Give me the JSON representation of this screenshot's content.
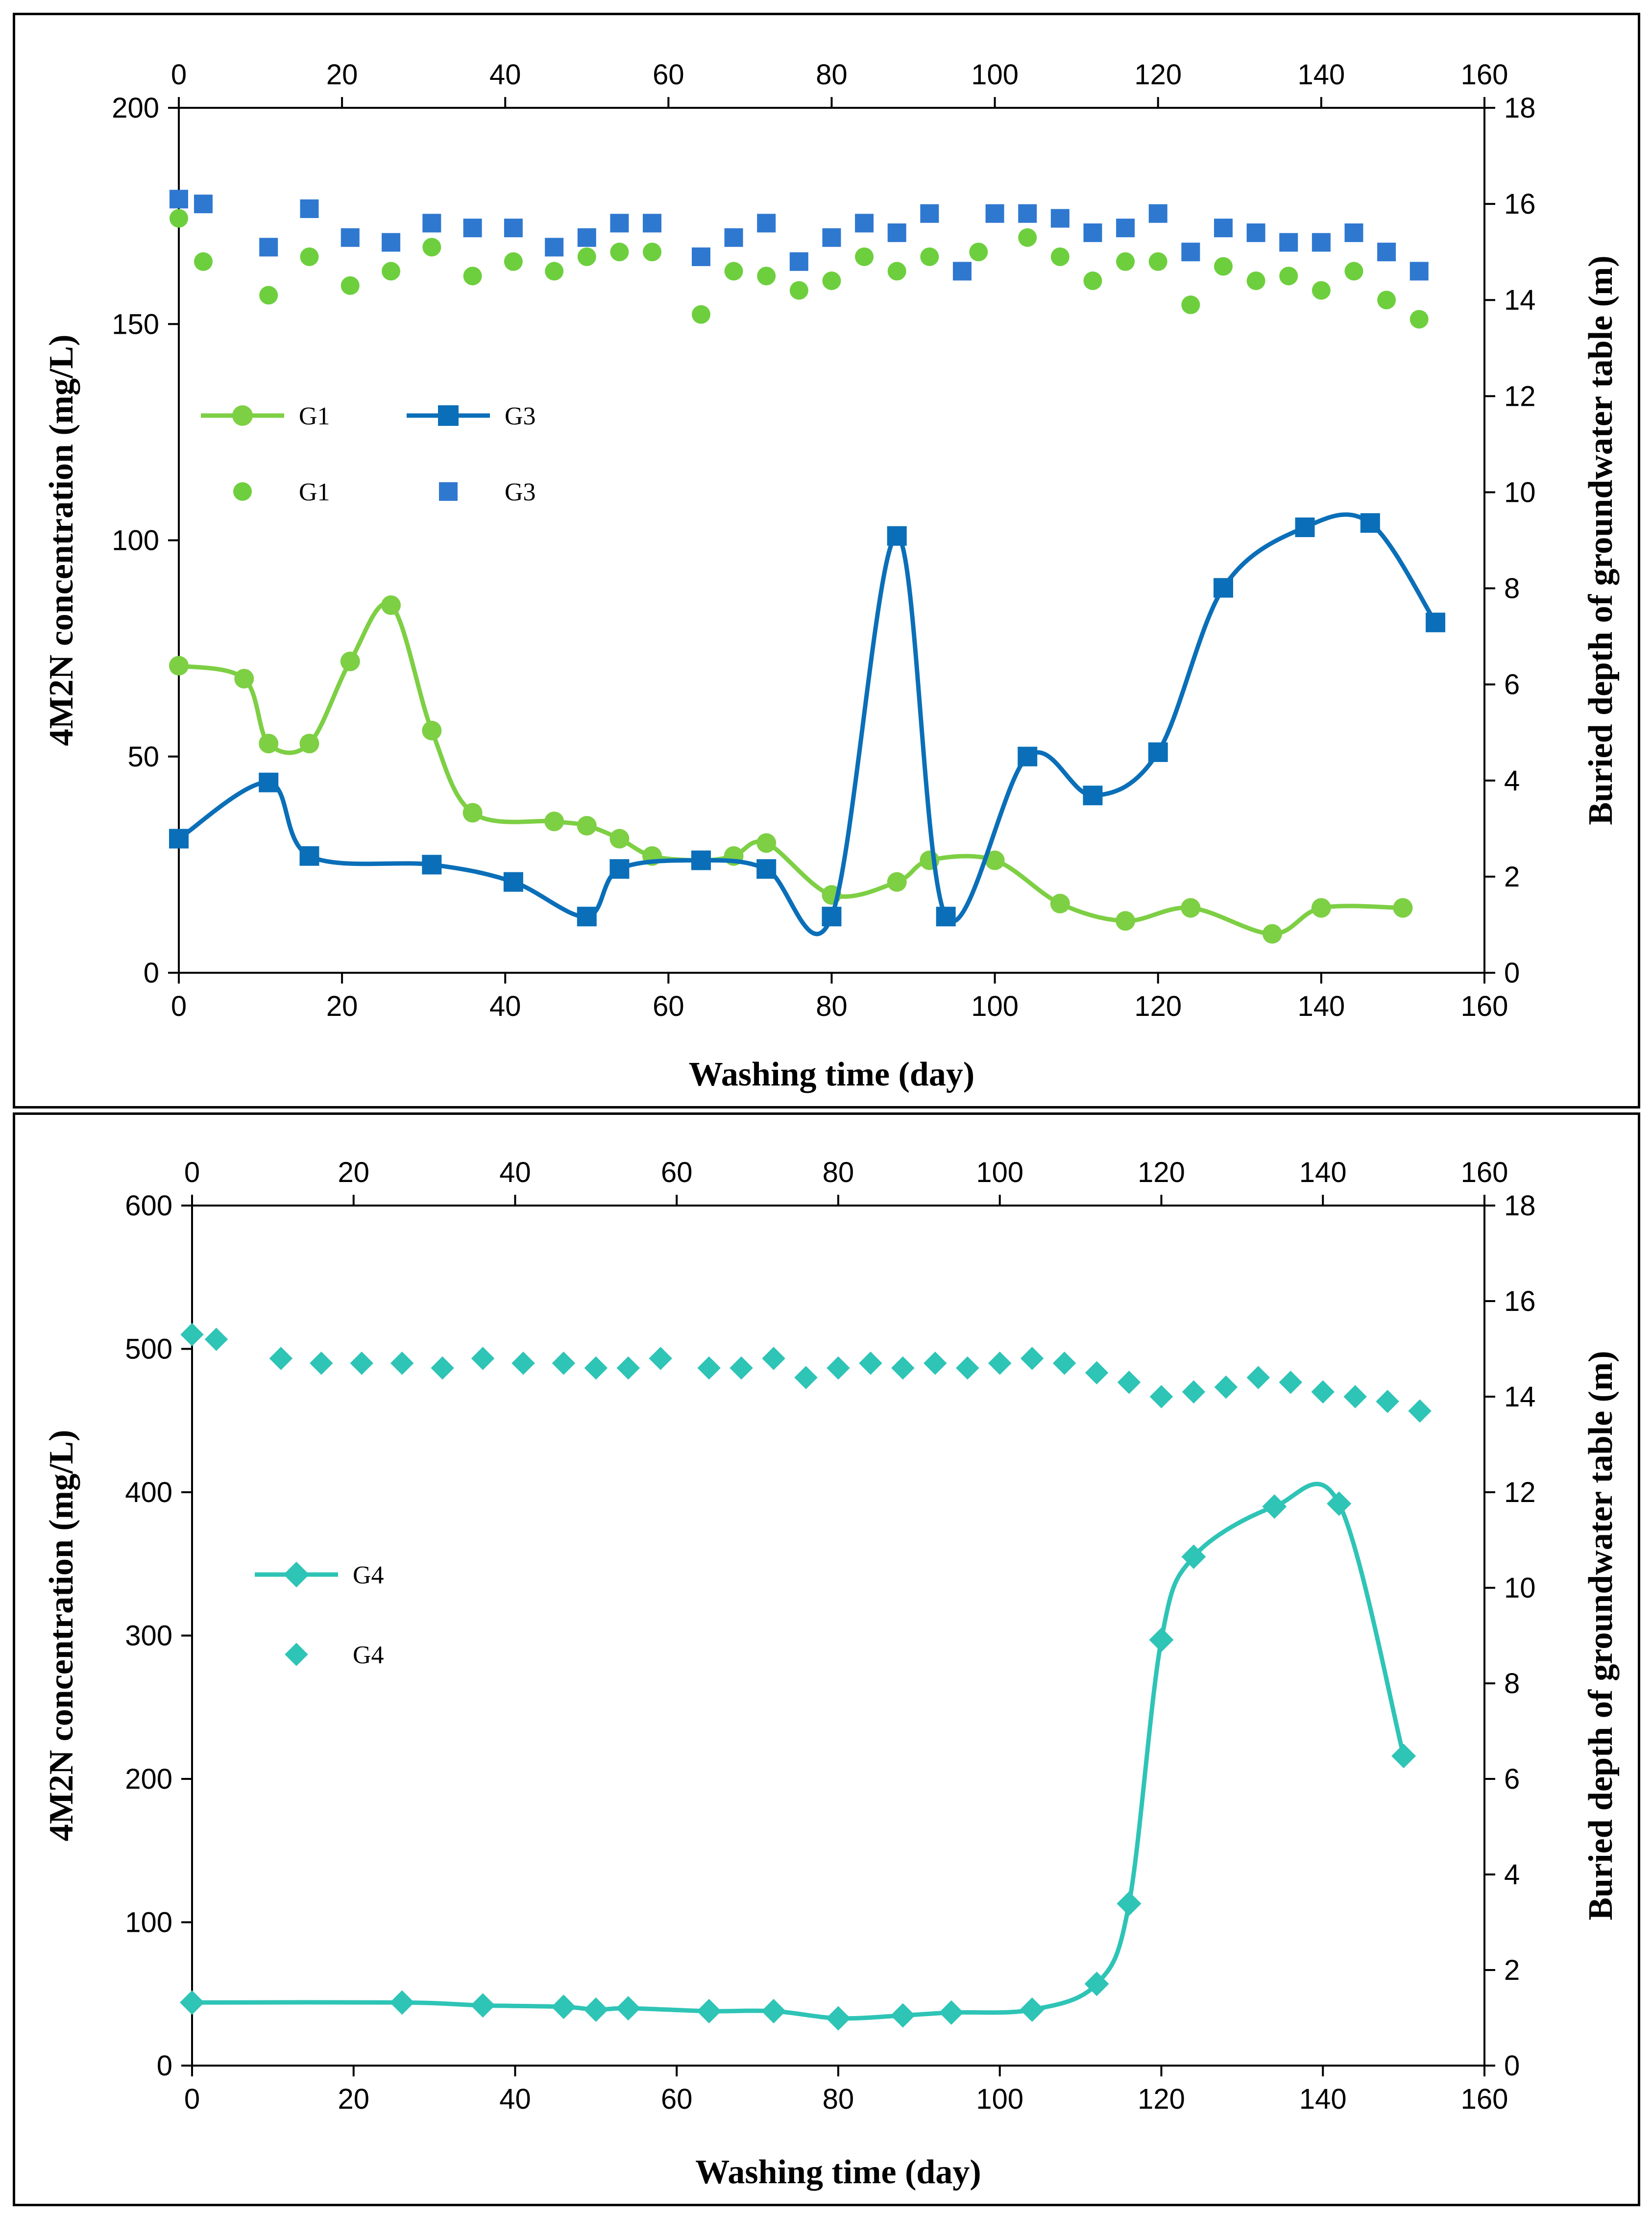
{
  "chart_data": [
    {
      "type": "line",
      "panel": "top",
      "xlabel": "Washing time (day)",
      "ylabel": "4M2N concentration (mg/L)",
      "y2label": "Buried depth of groundwater table (m)",
      "xlim": [
        0,
        160
      ],
      "ylim": [
        0,
        200
      ],
      "y2lim": [
        0,
        18
      ],
      "xticks": [
        0,
        20,
        40,
        60,
        80,
        100,
        120,
        140,
        160
      ],
      "yticks": [
        0,
        50,
        100,
        150,
        200
      ],
      "y2ticks": [
        0,
        2,
        4,
        6,
        8,
        10,
        12,
        14,
        16,
        18
      ],
      "legend_position": "left-middle",
      "legend": [
        "G1",
        "G3",
        "G1",
        "G3"
      ],
      "colors": {
        "G1": "#7dcf44",
        "G3": "#0a6fb8",
        "G3_marker": "#2f78d0",
        "G1_marker": "#6dcf3e"
      },
      "series": [
        {
          "name": "G1",
          "kind": "line",
          "axis": "left",
          "marker": "circle",
          "color": "#7dcf44",
          "x": [
            0,
            8,
            11,
            16,
            21,
            26,
            31,
            36,
            46,
            50,
            54,
            58,
            64,
            68,
            72,
            80,
            88,
            92,
            100,
            108,
            116,
            124,
            134,
            140,
            150
          ],
          "y": [
            71,
            68,
            53,
            53,
            72,
            85,
            56,
            37,
            35,
            34,
            31,
            27,
            26,
            27,
            30,
            18,
            21,
            26,
            26,
            16,
            12,
            15,
            9,
            15,
            15
          ]
        },
        {
          "name": "G3",
          "kind": "line",
          "axis": "left",
          "marker": "square",
          "color": "#0a6fb8",
          "x": [
            0,
            11,
            16,
            31,
            41,
            50,
            54,
            64,
            72,
            80,
            88,
            94,
            104,
            112,
            120,
            128,
            138,
            146,
            154
          ],
          "y": [
            31,
            44,
            27,
            25,
            21,
            13,
            24,
            26,
            24,
            13,
            101,
            13,
            50,
            41,
            51,
            89,
            103,
            104,
            81
          ]
        },
        {
          "name": "G1",
          "kind": "scatter",
          "axis": "right",
          "marker": "circle",
          "color": "#6dcf3e",
          "x": [
            0,
            3,
            11,
            16,
            21,
            26,
            31,
            36,
            41,
            46,
            50,
            54,
            58,
            64,
            68,
            72,
            76,
            80,
            84,
            88,
            92,
            98,
            104,
            108,
            112,
            116,
            120,
            124,
            128,
            132,
            136,
            140,
            144,
            148,
            152
          ],
          "y": [
            15.7,
            14.8,
            14.1,
            14.9,
            14.3,
            14.6,
            15.1,
            14.5,
            14.8,
            14.6,
            14.9,
            15.0,
            15.0,
            13.7,
            14.6,
            14.5,
            14.2,
            14.4,
            14.9,
            14.6,
            14.9,
            15.0,
            15.3,
            14.9,
            14.4,
            14.8,
            14.8,
            13.9,
            14.7,
            14.4,
            14.5,
            14.2,
            14.6,
            14.0,
            13.6
          ]
        },
        {
          "name": "G3",
          "kind": "scatter",
          "axis": "right",
          "marker": "square",
          "color": "#2f78d0",
          "x": [
            0,
            3,
            11,
            16,
            21,
            26,
            31,
            36,
            41,
            46,
            50,
            54,
            58,
            64,
            68,
            72,
            76,
            80,
            84,
            88,
            92,
            96,
            100,
            104,
            108,
            112,
            116,
            120,
            124,
            128,
            132,
            136,
            140,
            144,
            148,
            152
          ],
          "y": [
            16.1,
            16.0,
            15.1,
            15.9,
            15.3,
            15.2,
            15.6,
            15.5,
            15.5,
            15.1,
            15.3,
            15.6,
            15.6,
            14.9,
            15.3,
            15.6,
            14.8,
            15.3,
            15.6,
            15.4,
            15.8,
            14.6,
            15.8,
            15.8,
            15.7,
            15.4,
            15.5,
            15.8,
            15.0,
            15.5,
            15.4,
            15.2,
            15.2,
            15.4,
            15.0,
            14.6
          ]
        }
      ]
    },
    {
      "type": "line",
      "panel": "bottom",
      "xlabel": "Washing time (day)",
      "ylabel": "4M2N concentration (mg/L)",
      "y2label": "Buried depth of groundwater table (m)",
      "xlim": [
        0,
        160
      ],
      "ylim": [
        0,
        600
      ],
      "y2lim": [
        0,
        18
      ],
      "xticks": [
        0,
        20,
        40,
        60,
        80,
        100,
        120,
        140,
        160
      ],
      "yticks": [
        0,
        100,
        200,
        300,
        400,
        500,
        600
      ],
      "y2ticks": [
        0,
        2,
        4,
        6,
        8,
        10,
        12,
        14,
        16,
        18
      ],
      "legend_position": "left-middle",
      "legend": [
        "G4",
        "G4"
      ],
      "colors": {
        "G4": "#2ec4b6"
      },
      "series": [
        {
          "name": "G4",
          "kind": "line",
          "axis": "left",
          "marker": "diamond",
          "color": "#2ec4b6",
          "x": [
            0,
            26,
            36,
            46,
            50,
            54,
            64,
            72,
            80,
            88,
            94,
            104,
            112,
            116,
            120,
            124,
            134,
            142,
            150
          ],
          "y": [
            44,
            44,
            42,
            41,
            39,
            40,
            38,
            38,
            33,
            35,
            37,
            39,
            57,
            113,
            297,
            355,
            390,
            392,
            216
          ]
        },
        {
          "name": "G4",
          "kind": "scatter",
          "axis": "right",
          "marker": "diamond",
          "color": "#2ec4b6",
          "x": [
            0,
            3,
            11,
            16,
            21,
            26,
            31,
            36,
            41,
            46,
            50,
            54,
            58,
            64,
            68,
            72,
            76,
            80,
            84,
            88,
            92,
            96,
            100,
            104,
            108,
            112,
            116,
            120,
            124,
            128,
            132,
            136,
            140,
            144,
            148,
            152
          ],
          "y": [
            15.3,
            15.2,
            14.8,
            14.7,
            14.7,
            14.7,
            14.6,
            14.8,
            14.7,
            14.7,
            14.6,
            14.6,
            14.8,
            14.6,
            14.6,
            14.8,
            14.4,
            14.6,
            14.7,
            14.6,
            14.7,
            14.6,
            14.7,
            14.8,
            14.7,
            14.5,
            14.3,
            14.0,
            14.1,
            14.2,
            14.4,
            14.3,
            14.1,
            14.0,
            13.9,
            13.7
          ]
        }
      ]
    }
  ]
}
